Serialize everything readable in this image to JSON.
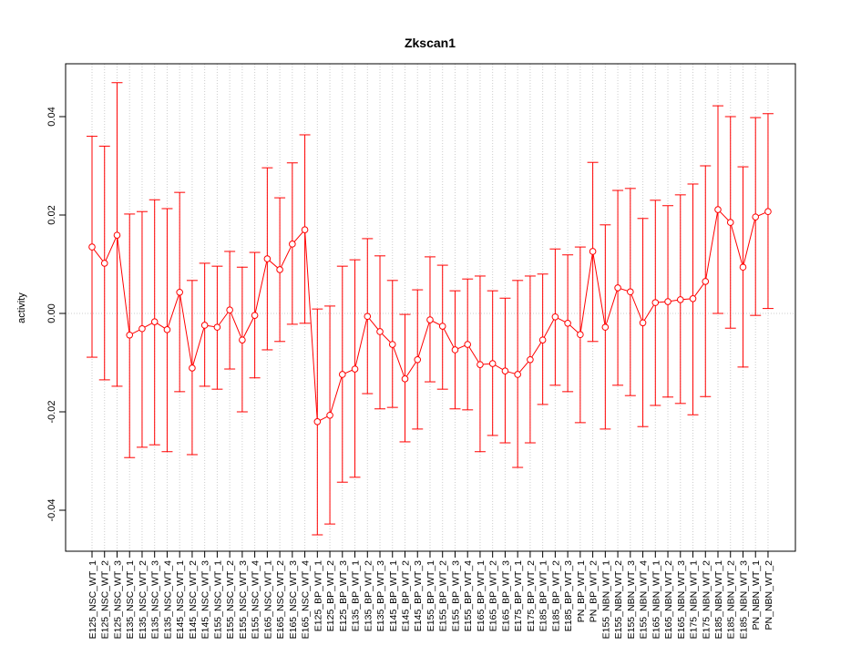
{
  "chart_data": {
    "type": "line",
    "title": "Zkscan1",
    "xlabel": "",
    "ylabel": "activity",
    "ylim": [
      -0.049,
      0.05
    ],
    "yticks": [
      -0.04,
      -0.02,
      0.0,
      0.02,
      0.04
    ],
    "ytick_labels": [
      "-0.04",
      "-0.02",
      "0.00",
      "0.02",
      "0.04"
    ],
    "grid": true,
    "colors": {
      "series": "#ff0000",
      "grid": "#cccccc",
      "axis": "#000000"
    },
    "categories": [
      "E125_NSC_WT_1",
      "E125_NSC_WT_2",
      "E125_NSC_WT_3",
      "E135_NSC_WT_1",
      "E135_NSC_WT_2",
      "E135_NSC_WT_3",
      "E135_NSC_WT_4",
      "E145_NSC_WT_1",
      "E145_NSC_WT_2",
      "E145_NSC_WT_3",
      "E155_NSC_WT_1",
      "E155_NSC_WT_2",
      "E155_NSC_WT_3",
      "E155_NSC_WT_4",
      "E165_NSC_WT_1",
      "E165_NSC_WT_2",
      "E165_NSC_WT_3",
      "E165_NSC_WT_4",
      "E125_BP_WT_1",
      "E125_BP_WT_2",
      "E125_BP_WT_3",
      "E135_BP_WT_1",
      "E135_BP_WT_2",
      "E135_BP_WT_3",
      "E145_BP_WT_1",
      "E145_BP_WT_2",
      "E145_BP_WT_3",
      "E155_BP_WT_1",
      "E155_BP_WT_2",
      "E155_BP_WT_3",
      "E155_BP_WT_4",
      "E165_BP_WT_1",
      "E165_BP_WT_2",
      "E165_BP_WT_3",
      "E175_BP_WT_1",
      "E175_BP_WT_2",
      "E185_BP_WT_1",
      "E185_BP_WT_2",
      "E185_BP_WT_3",
      "PN_BP_WT_1",
      "PN_BP_WT_2",
      "E155_NBN_WT_1",
      "E155_NBN_WT_2",
      "E155_NBN_WT_3",
      "E155_NBN_WT_4",
      "E165_NBN_WT_1",
      "E165_NBN_WT_2",
      "E165_NBN_WT_3",
      "E175_NBN_WT_1",
      "E175_NBN_WT_2",
      "E185_NBN_WT_1",
      "E185_NBN_WT_2",
      "E185_NBN_WT_3",
      "PN_NBN_WT_1",
      "PN_NBN_WT_2"
    ],
    "series": [
      {
        "name": "activity",
        "values": [
          0.0135,
          0.0102,
          0.0159,
          -0.0044,
          -0.0031,
          -0.0017,
          -0.0033,
          0.0043,
          -0.0111,
          -0.0024,
          -0.0028,
          0.0007,
          -0.0054,
          -0.0004,
          0.0111,
          0.0089,
          0.0141,
          0.017,
          -0.022,
          -0.0207,
          -0.0124,
          -0.0113,
          -0.0006,
          -0.0037,
          -0.0063,
          -0.0133,
          -0.0094,
          -0.0013,
          -0.0026,
          -0.0074,
          -0.0063,
          -0.0104,
          -0.0102,
          -0.0117,
          -0.0124,
          -0.0094,
          -0.0054,
          -0.0007,
          -0.002,
          -0.0043,
          0.0126,
          -0.0028,
          0.0052,
          0.0044,
          -0.0019,
          0.0022,
          0.0024,
          0.0028,
          0.003,
          0.0065,
          0.0211,
          0.0185,
          0.0094,
          0.0196,
          0.0207
        ],
        "upper": [
          0.036,
          0.034,
          0.0469,
          0.0202,
          0.0207,
          0.0231,
          0.0213,
          0.0246,
          0.0067,
          0.0102,
          0.0096,
          0.0126,
          0.0094,
          0.0124,
          0.0296,
          0.0235,
          0.0306,
          0.0363,
          0.0009,
          0.0015,
          0.0096,
          0.0109,
          0.0152,
          0.0117,
          0.0067,
          -0.0002,
          0.0048,
          0.0115,
          0.0098,
          0.0046,
          0.007,
          0.0076,
          0.0046,
          0.0031,
          0.0067,
          0.0076,
          0.008,
          0.0131,
          0.0119,
          0.0135,
          0.0307,
          0.018,
          0.025,
          0.0254,
          0.0193,
          0.023,
          0.0219,
          0.0241,
          0.0263,
          0.03,
          0.0422,
          0.04,
          0.0298,
          0.0398,
          0.0406
        ],
        "lower": [
          -0.0089,
          -0.0135,
          -0.0148,
          -0.0293,
          -0.0272,
          -0.0267,
          -0.0281,
          -0.0159,
          -0.0287,
          -0.0148,
          -0.0154,
          -0.0113,
          -0.02,
          -0.0131,
          -0.0074,
          -0.0057,
          -0.0022,
          -0.002,
          -0.045,
          -0.0428,
          -0.0343,
          -0.0333,
          -0.0163,
          -0.0194,
          -0.0191,
          -0.0261,
          -0.0235,
          -0.0139,
          -0.0154,
          -0.0194,
          -0.0196,
          -0.0281,
          -0.0248,
          -0.0263,
          -0.0313,
          -0.0263,
          -0.0185,
          -0.0146,
          -0.0159,
          -0.0222,
          -0.0057,
          -0.0235,
          -0.0146,
          -0.0167,
          -0.023,
          -0.0187,
          -0.017,
          -0.0183,
          -0.0206,
          -0.0169,
          0.0,
          -0.003,
          -0.0109,
          -0.0004,
          0.001
        ]
      }
    ]
  }
}
